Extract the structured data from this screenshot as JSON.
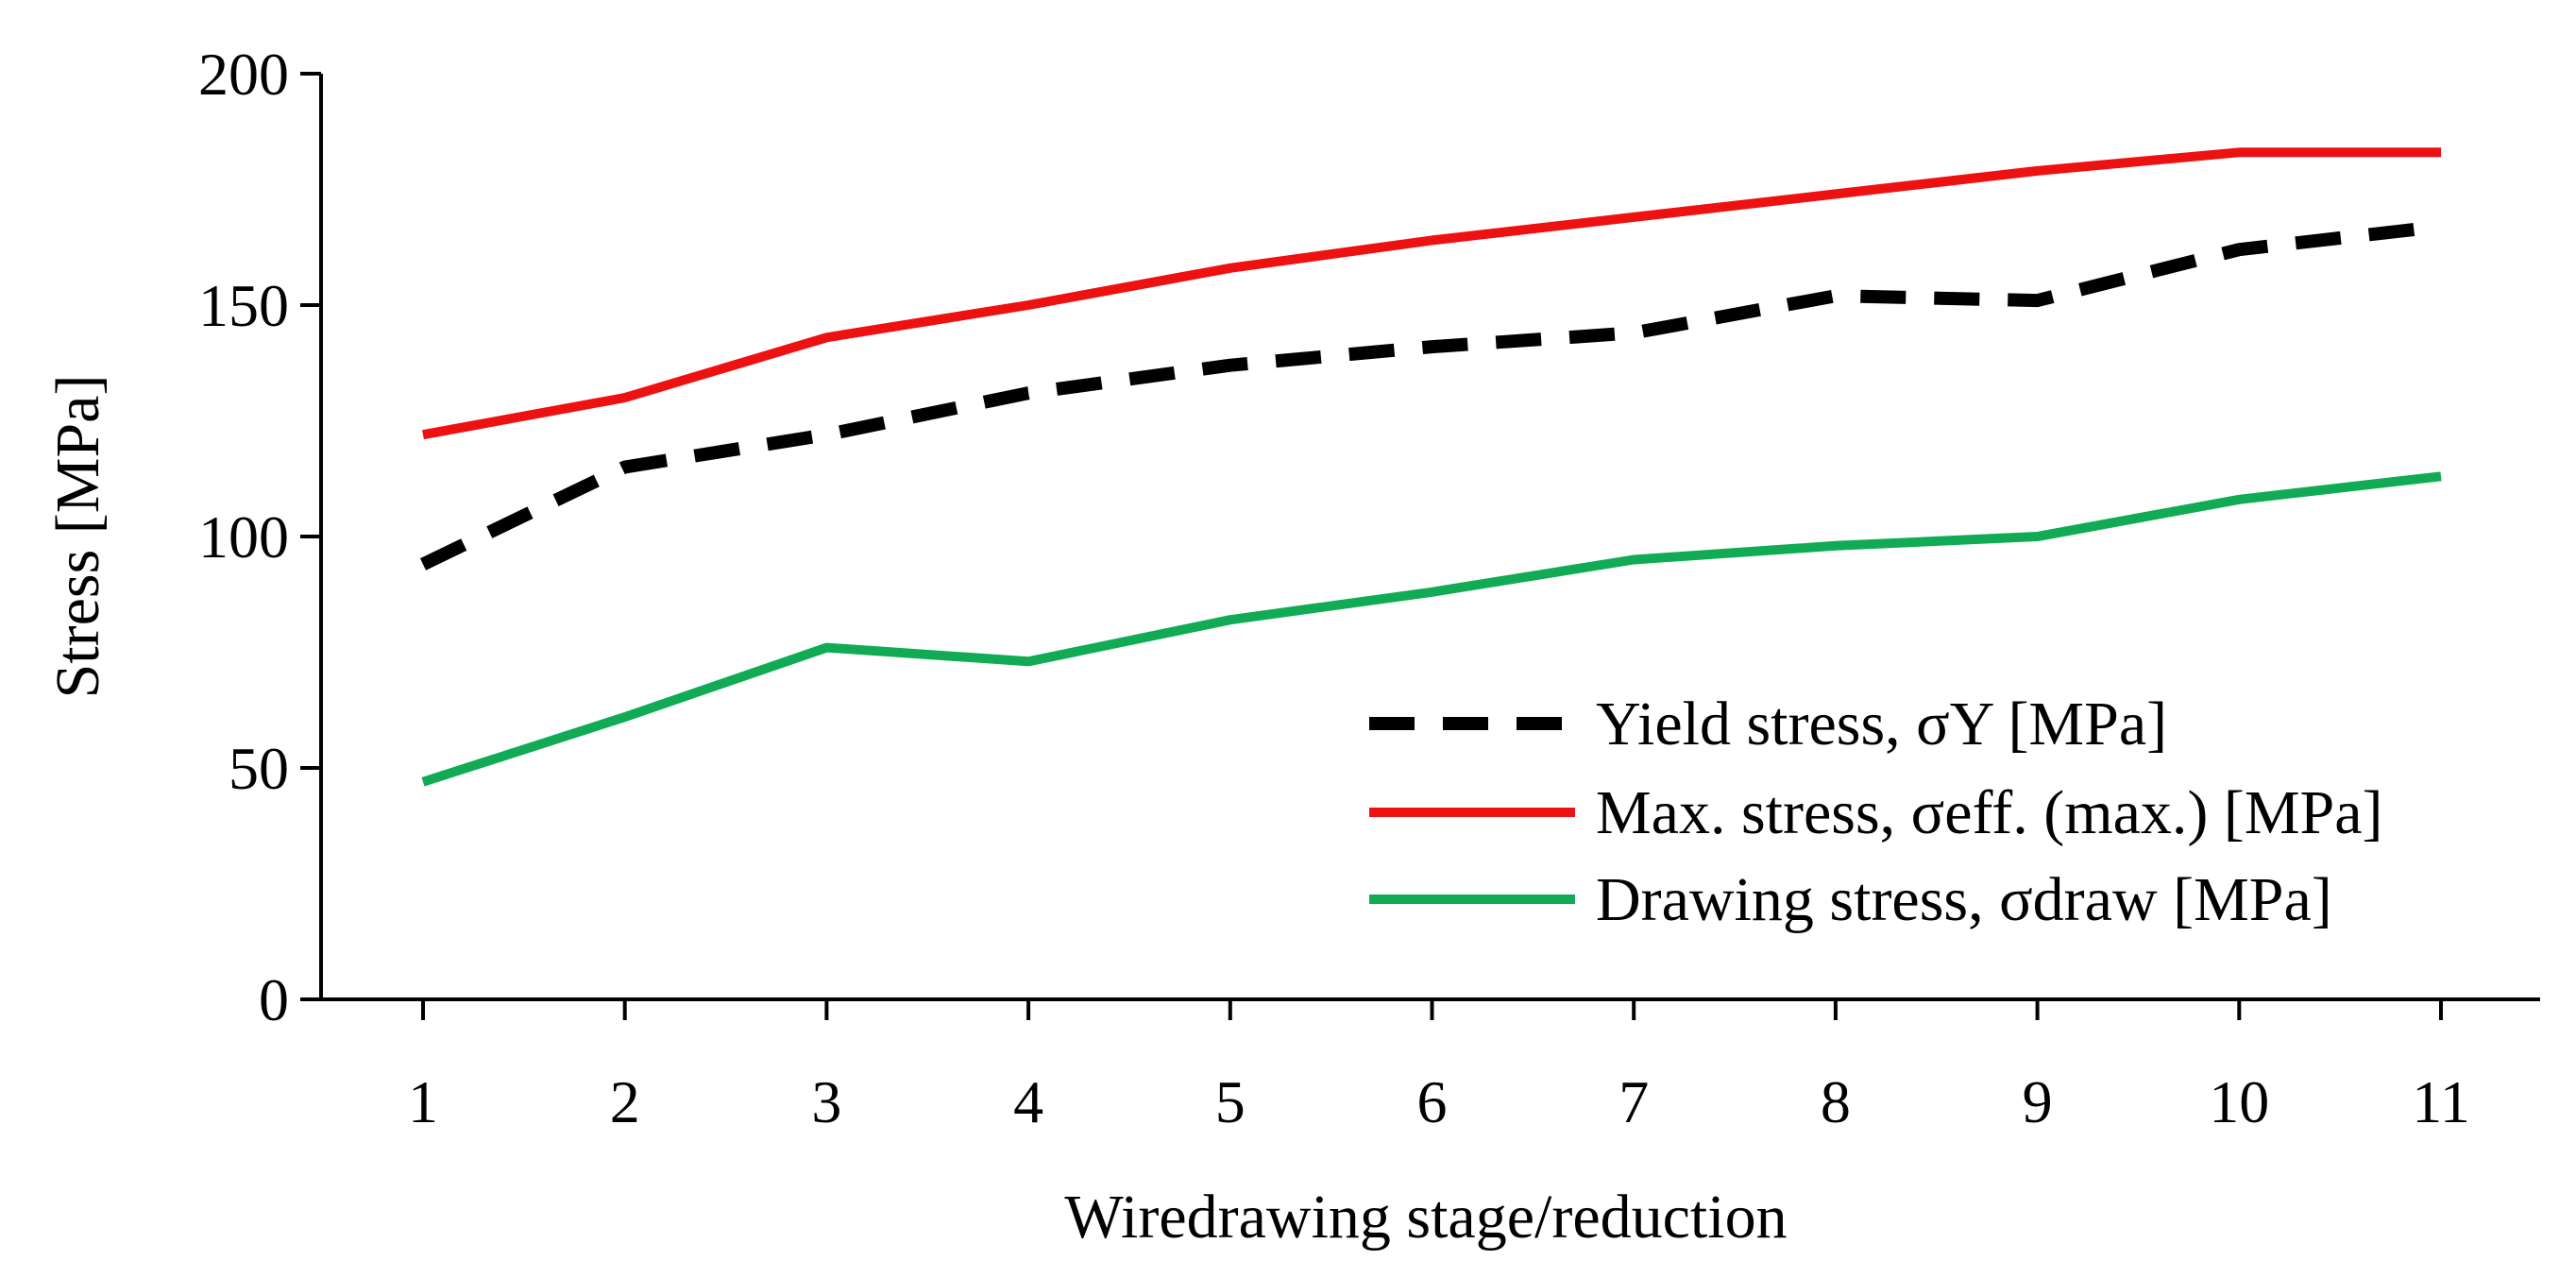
{
  "chart_data": {
    "type": "line",
    "title": "",
    "xlabel": "Wiredrawing stage/reduction",
    "ylabel": "Stress [MPa]",
    "categories": [
      "1",
      "2",
      "3",
      "4",
      "5",
      "6",
      "7",
      "8",
      "9",
      "10",
      "11"
    ],
    "ylim": [
      0,
      200
    ],
    "yticks": [
      "0",
      "50",
      "100",
      "150",
      "200"
    ],
    "grid": false,
    "legend_position": "bottom-right",
    "series": [
      {
        "name": "Yield stress, σY [MPa]",
        "values": [
          94,
          115,
          122,
          131,
          137,
          141,
          144,
          152,
          151,
          162,
          167
        ],
        "color": "#000000",
        "style": "dashed"
      },
      {
        "name": "Max. stress, σeff. (max.) [MPa]",
        "values": [
          122,
          130,
          143,
          150,
          158,
          164,
          169,
          174,
          179,
          183,
          183
        ],
        "color": "#ee1111",
        "style": "solid"
      },
      {
        "name": "Drawing stress, σdraw [MPa]",
        "values": [
          47,
          61,
          76,
          73,
          82,
          88,
          95,
          98,
          100,
          108,
          113
        ],
        "color": "#11aa55",
        "style": "solid"
      }
    ]
  }
}
